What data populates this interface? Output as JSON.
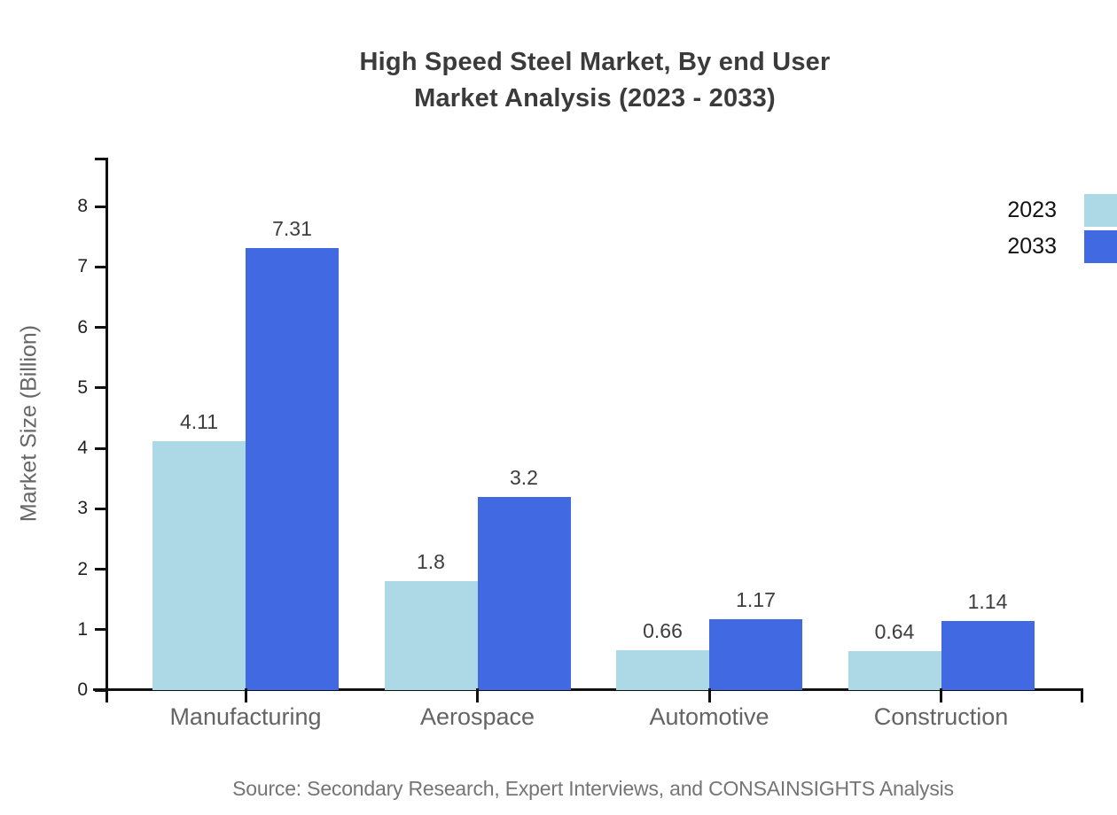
{
  "source": "Source: Secondary Research, Expert Interviews, and CONSAINSIGHTS Analysis",
  "chart_data": {
    "type": "bar",
    "title": "High Speed Steel Market, By end User\nMarket Analysis (2023 - 2033)",
    "xlabel": "",
    "ylabel": "Market Size (Billion)",
    "categories": [
      "Manufacturing",
      "Aerospace",
      "Automotive",
      "Construction"
    ],
    "series": [
      {
        "name": "2023",
        "color": "#add8e6",
        "values": [
          4.11,
          1.8,
          0.66,
          0.64
        ],
        "labels": [
          "4.11",
          "1.8",
          "0.66",
          "0.64"
        ]
      },
      {
        "name": "2033",
        "color": "#4169e1",
        "values": [
          7.31,
          3.2,
          1.17,
          1.14
        ],
        "labels": [
          "7.31",
          "3.2",
          "1.17",
          "1.14"
        ]
      }
    ],
    "yticks": [
      0,
      1,
      2,
      3,
      4,
      5,
      6,
      7,
      8
    ],
    "ylim": [
      0,
      8.8
    ],
    "grid": false,
    "legend_position": "top-right",
    "axis_color": "#111111"
  }
}
